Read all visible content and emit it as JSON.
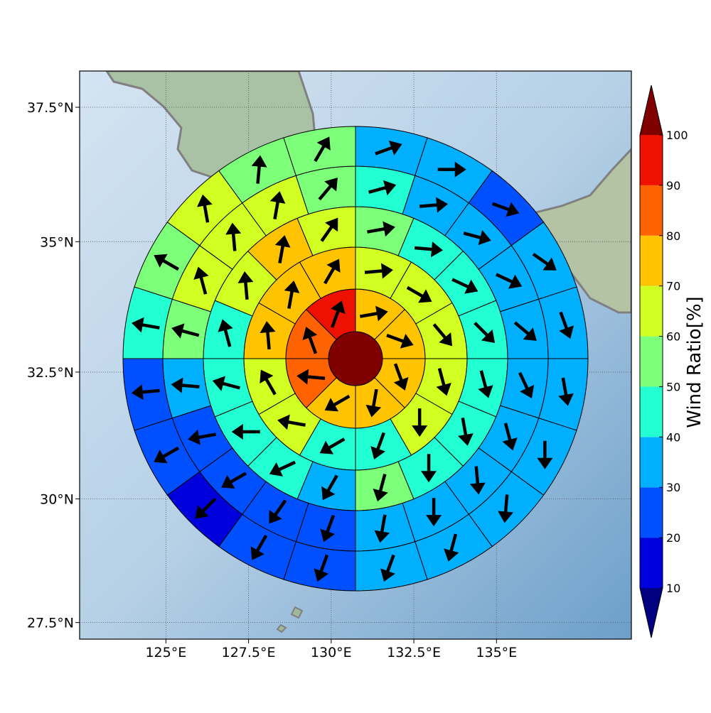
{
  "chart_data": {
    "type": "wind-grid",
    "projection": "mercator",
    "xlim": [
      122.39,
      139.08
    ],
    "ylim": [
      27.16,
      38.16
    ],
    "xticks": [
      {
        "value": 125,
        "label": "125°E"
      },
      {
        "value": 127.5,
        "label": "127.5°E"
      },
      {
        "value": 130,
        "label": "130°E"
      },
      {
        "value": 132.5,
        "label": "132.5°E"
      },
      {
        "value": 135,
        "label": "135°E"
      }
    ],
    "yticks": [
      {
        "value": 27.5,
        "label": "27.5°N"
      },
      {
        "value": 30,
        "label": "30°N"
      },
      {
        "value": 32.5,
        "label": "32.5°N"
      },
      {
        "value": 35,
        "label": "35°N"
      },
      {
        "value": 37.5,
        "label": "37.5°N"
      }
    ],
    "grid": true,
    "center_value": 100,
    "rings": [
      {
        "values": [
          70,
          70,
          70,
          70,
          70,
          80,
          80,
          90
        ],
        "directions": [
          80,
          110,
          160,
          190,
          240,
          275,
          340,
          20
        ]
      },
      {
        "values": [
          60,
          60,
          60,
          60,
          60,
          40,
          40,
          60,
          60,
          70,
          70,
          70
        ],
        "directions": [
          85,
          120,
          140,
          165,
          180,
          200,
          240,
          280,
          330,
          355,
          10,
          30
        ]
      },
      {
        "values": [
          50,
          40,
          40,
          40,
          40,
          40,
          40,
          50,
          30,
          40,
          40,
          40,
          40,
          60,
          70,
          60
        ],
        "directions": [
          80,
          95,
          115,
          135,
          165,
          170,
          180,
          195,
          210,
          245,
          270,
          285,
          345,
          355,
          10,
          35
        ]
      },
      {
        "values": [
          40,
          30,
          30,
          30,
          30,
          30,
          30,
          30,
          30,
          30,
          20,
          20,
          20,
          20,
          30,
          50,
          60,
          60,
          60,
          50
        ],
        "directions": [
          75,
          85,
          105,
          115,
          130,
          155,
          165,
          175,
          180,
          190,
          200,
          215,
          240,
          260,
          275,
          285,
          345,
          355,
          10,
          40
        ]
      },
      {
        "values": [
          30,
          30,
          20,
          30,
          30,
          30,
          30,
          30,
          30,
          30,
          20,
          20,
          10,
          20,
          20,
          40,
          50,
          60,
          50,
          50
        ],
        "directions": [
          70,
          90,
          110,
          125,
          160,
          170,
          180,
          185,
          195,
          200,
          200,
          210,
          225,
          240,
          265,
          280,
          300,
          350,
          5,
          30
        ]
      }
    ],
    "colorbar": {
      "label": "Wind Ratio[%]",
      "levels": [
        10,
        20,
        30,
        40,
        50,
        60,
        70,
        80,
        90,
        100
      ],
      "colors": [
        "#0000dd",
        "#0050ff",
        "#00b0ff",
        "#22ffd2",
        "#7cff79",
        "#d2ff22",
        "#ffc300",
        "#ff6200",
        "#ee1000"
      ],
      "under": "#000080",
      "over": "#800000"
    }
  }
}
